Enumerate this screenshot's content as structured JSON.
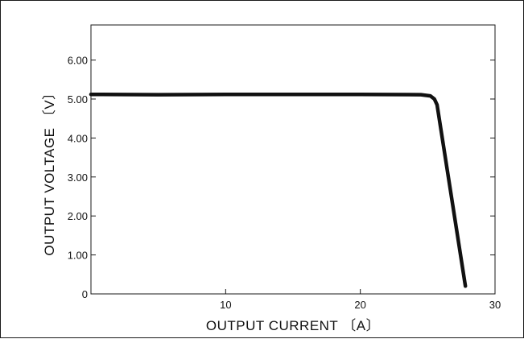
{
  "chart_data": {
    "type": "line",
    "title": "",
    "xlabel": "OUTPUT  CURRENT 〔A〕",
    "ylabel": "OUTPUT VOLTAGE 〔V〕",
    "xlim": [
      0,
      30
    ],
    "ylim": [
      0,
      6.9
    ],
    "x_ticks": [
      {
        "value": 10,
        "label": "10"
      },
      {
        "value": 20,
        "label": "20"
      },
      {
        "value": 30,
        "label": "30"
      }
    ],
    "y_ticks": [
      {
        "value": 0,
        "label": "0"
      },
      {
        "value": 1,
        "label": "1.00"
      },
      {
        "value": 2,
        "label": "2.00"
      },
      {
        "value": 3,
        "label": "3.00"
      },
      {
        "value": 4,
        "label": "4.00"
      },
      {
        "value": 5,
        "label": "5.00"
      },
      {
        "value": 6,
        "label": "6.00"
      }
    ],
    "grid": false,
    "legend": "none",
    "line_color": "#111111",
    "series": [
      {
        "x": [
          0,
          5,
          10,
          15,
          20,
          24.5,
          25.2,
          25.5,
          25.7,
          27.8
        ],
        "values": [
          5.12,
          5.11,
          5.12,
          5.12,
          5.12,
          5.11,
          5.08,
          5.0,
          4.85,
          0.2
        ]
      }
    ]
  }
}
